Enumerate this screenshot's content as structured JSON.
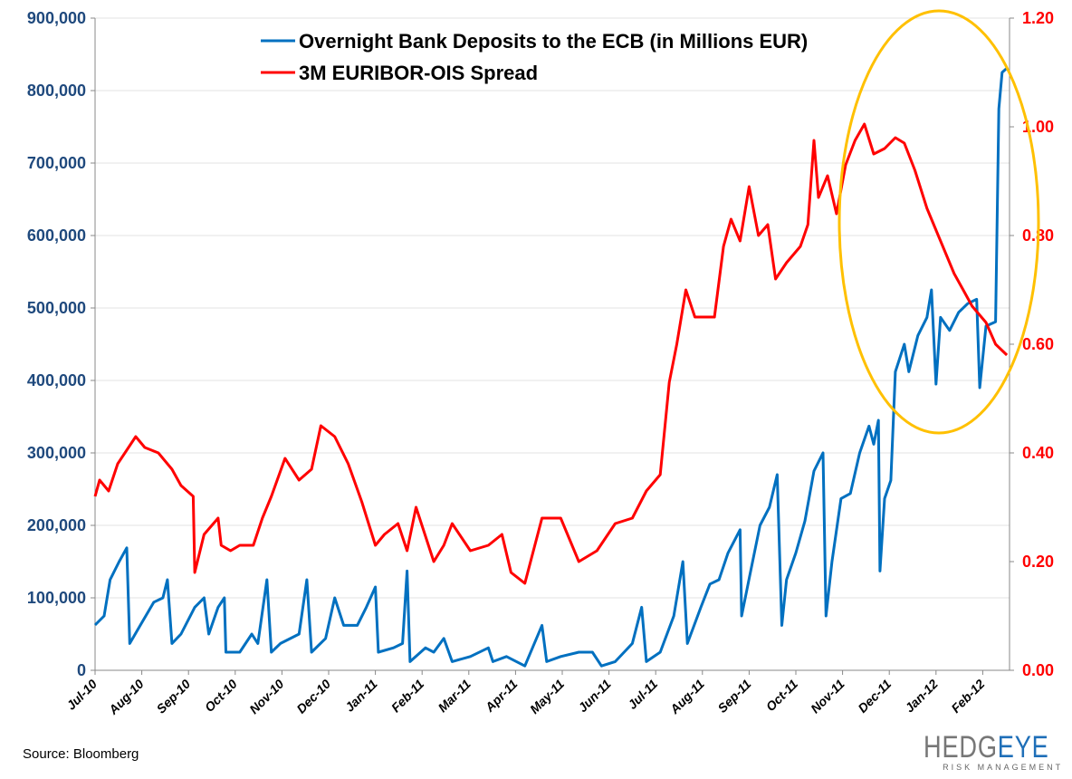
{
  "chart_data": {
    "type": "line",
    "title": "",
    "source": "Source: Bloomberg",
    "logo": {
      "main": "HEDGEYE",
      "sub": "RISK MANAGEMENT"
    },
    "x_tick_labels": [
      "Jul-10",
      "Aug-10",
      "Sep-10",
      "Oct-10",
      "Nov-10",
      "Dec-10",
      "Jan-11",
      "Feb-11",
      "Mar-11",
      "Apr-11",
      "May-11",
      "Jun-11",
      "Jul-11",
      "Aug-11",
      "Sep-11",
      "Oct-11",
      "Nov-11",
      "Dec-11",
      "Jan-12",
      "Feb-12"
    ],
    "y_left": {
      "ticks": [
        0,
        100000,
        200000,
        300000,
        400000,
        500000,
        600000,
        700000,
        800000,
        900000
      ],
      "tick_labels": [
        "0",
        "100,000",
        "200,000",
        "300,000",
        "400,000",
        "500,000",
        "600,000",
        "700,000",
        "800,000",
        "900,000"
      ],
      "range": [
        0,
        900000
      ],
      "color": "#1F497D"
    },
    "y_right": {
      "ticks": [
        0,
        0.2,
        0.4,
        0.6,
        0.8,
        1.0,
        1.2
      ],
      "tick_labels": [
        "0.00",
        "0.20",
        "0.40",
        "0.60",
        "0.80",
        "1.00",
        "1.20"
      ],
      "range": [
        0,
        1.2
      ],
      "color": "#FF0000"
    },
    "grid": "horizontal",
    "legend_position": "top",
    "annotation": {
      "shape": "ellipse",
      "color": "#FFC000",
      "covers": "Nov-11 to Feb-12"
    },
    "series": [
      {
        "name": "Overnight Bank Deposits to the ECB (in Millions EUR)",
        "axis": "left",
        "color": "#0070C0",
        "points": [
          [
            "2010-07-01",
            62500
          ],
          [
            "2010-07-07",
            75000
          ],
          [
            "2010-07-11",
            125000
          ],
          [
            "2010-07-17",
            150000
          ],
          [
            "2010-07-22",
            169000
          ],
          [
            "2010-07-24",
            37000
          ],
          [
            "2010-07-31",
            62000
          ],
          [
            "2010-08-09",
            94000
          ],
          [
            "2010-08-15",
            100000
          ],
          [
            "2010-08-18",
            125000
          ],
          [
            "2010-08-21",
            37000
          ],
          [
            "2010-08-27",
            50000
          ],
          [
            "2010-09-05",
            87000
          ],
          [
            "2010-09-11",
            100000
          ],
          [
            "2010-09-14",
            50000
          ],
          [
            "2010-09-20",
            87000
          ],
          [
            "2010-09-24",
            100000
          ],
          [
            "2010-09-25",
            25000
          ],
          [
            "2010-10-04",
            25000
          ],
          [
            "2010-10-12",
            50000
          ],
          [
            "2010-10-16",
            37000
          ],
          [
            "2010-10-22",
            125000
          ],
          [
            "2010-10-25",
            25000
          ],
          [
            "2010-10-31",
            37000
          ],
          [
            "2010-11-12",
            50000
          ],
          [
            "2010-11-17",
            125000
          ],
          [
            "2010-11-20",
            25000
          ],
          [
            "2010-11-29",
            44000
          ],
          [
            "2010-12-05",
            100000
          ],
          [
            "2010-12-11",
            62000
          ],
          [
            "2010-12-20",
            62000
          ],
          [
            "2010-12-26",
            87000
          ],
          [
            "2011-01-01",
            115000
          ],
          [
            "2011-01-03",
            25000
          ],
          [
            "2011-01-13",
            31000
          ],
          [
            "2011-01-19",
            37000
          ],
          [
            "2011-01-22",
            137000
          ],
          [
            "2011-01-24",
            12000
          ],
          [
            "2011-02-03",
            31000
          ],
          [
            "2011-02-08",
            25000
          ],
          [
            "2011-02-14",
            44000
          ],
          [
            "2011-02-19",
            12000
          ],
          [
            "2011-03-02",
            19000
          ],
          [
            "2011-03-14",
            31000
          ],
          [
            "2011-03-17",
            12000
          ],
          [
            "2011-03-26",
            19000
          ],
          [
            "2011-04-07",
            6000
          ],
          [
            "2011-04-18",
            62000
          ],
          [
            "2011-04-21",
            12000
          ],
          [
            "2011-04-30",
            19000
          ],
          [
            "2011-05-12",
            25000
          ],
          [
            "2011-05-21",
            25000
          ],
          [
            "2011-05-27",
            6000
          ],
          [
            "2011-06-05",
            12000
          ],
          [
            "2011-06-16",
            37000
          ],
          [
            "2011-06-22",
            87000
          ],
          [
            "2011-06-25",
            12000
          ],
          [
            "2011-07-04",
            25000
          ],
          [
            "2011-07-13",
            75000
          ],
          [
            "2011-07-19",
            150000
          ],
          [
            "2011-07-22",
            37000
          ],
          [
            "2011-07-31",
            87000
          ],
          [
            "2011-08-06",
            119000
          ],
          [
            "2011-08-12",
            125000
          ],
          [
            "2011-08-18",
            162000
          ],
          [
            "2011-08-26",
            194000
          ],
          [
            "2011-08-27",
            75000
          ],
          [
            "2011-09-02",
            137000
          ],
          [
            "2011-09-08",
            200000
          ],
          [
            "2011-09-14",
            225000
          ],
          [
            "2011-09-19",
            270000
          ],
          [
            "2011-09-22",
            62000
          ],
          [
            "2011-09-25",
            125000
          ],
          [
            "2011-10-01",
            162000
          ],
          [
            "2011-10-07",
            206000
          ],
          [
            "2011-10-13",
            275000
          ],
          [
            "2011-10-19",
            300000
          ],
          [
            "2011-10-21",
            75000
          ],
          [
            "2011-10-25",
            150000
          ],
          [
            "2011-10-31",
            237000
          ],
          [
            "2011-11-06",
            244000
          ],
          [
            "2011-11-12",
            300000
          ],
          [
            "2011-11-18",
            337000
          ],
          [
            "2011-11-21",
            312000
          ],
          [
            "2011-11-24",
            345000
          ],
          [
            "2011-11-25",
            137000
          ],
          [
            "2011-11-28",
            237000
          ],
          [
            "2011-12-02",
            262000
          ],
          [
            "2011-12-05",
            412000
          ],
          [
            "2011-12-11",
            450000
          ],
          [
            "2011-12-14",
            412000
          ],
          [
            "2011-12-20",
            462000
          ],
          [
            "2011-12-26",
            487000
          ],
          [
            "2011-12-29",
            525000
          ],
          [
            "2012-01-01",
            395000
          ],
          [
            "2012-01-04",
            487000
          ],
          [
            "2012-01-10",
            469000
          ],
          [
            "2012-01-16",
            494000
          ],
          [
            "2012-01-22",
            506000
          ],
          [
            "2012-01-28",
            512000
          ],
          [
            "2012-01-30",
            390000
          ],
          [
            "2012-02-03",
            475000
          ],
          [
            "2012-02-09",
            481000
          ],
          [
            "2012-02-11",
            775000
          ],
          [
            "2012-02-13",
            825000
          ],
          [
            "2012-02-16",
            831000
          ]
        ]
      },
      {
        "name": "3M EURIBOR-OIS Spread",
        "axis": "right",
        "color": "#FF0000",
        "points": [
          [
            "2010-07-01",
            0.32
          ],
          [
            "2010-07-04",
            0.35
          ],
          [
            "2010-07-10",
            0.33
          ],
          [
            "2010-07-16",
            0.38
          ],
          [
            "2010-07-28",
            0.43
          ],
          [
            "2010-08-03",
            0.41
          ],
          [
            "2010-08-12",
            0.4
          ],
          [
            "2010-08-21",
            0.37
          ],
          [
            "2010-08-27",
            0.34
          ],
          [
            "2010-09-04",
            0.32
          ],
          [
            "2010-09-05",
            0.18
          ],
          [
            "2010-09-11",
            0.25
          ],
          [
            "2010-09-20",
            0.28
          ],
          [
            "2010-09-22",
            0.23
          ],
          [
            "2010-09-28",
            0.22
          ],
          [
            "2010-10-04",
            0.23
          ],
          [
            "2010-10-13",
            0.23
          ],
          [
            "2010-10-19",
            0.28
          ],
          [
            "2010-10-25",
            0.32
          ],
          [
            "2010-11-03",
            0.39
          ],
          [
            "2010-11-12",
            0.35
          ],
          [
            "2010-11-20",
            0.37
          ],
          [
            "2010-11-26",
            0.45
          ],
          [
            "2010-12-05",
            0.43
          ],
          [
            "2010-12-14",
            0.38
          ],
          [
            "2010-12-23",
            0.31
          ],
          [
            "2011-01-01",
            0.23
          ],
          [
            "2011-01-07",
            0.25
          ],
          [
            "2011-01-16",
            0.27
          ],
          [
            "2011-01-22",
            0.22
          ],
          [
            "2011-01-28",
            0.3
          ],
          [
            "2011-02-08",
            0.2
          ],
          [
            "2011-02-14",
            0.23
          ],
          [
            "2011-02-19",
            0.27
          ],
          [
            "2011-03-02",
            0.22
          ],
          [
            "2011-03-14",
            0.23
          ],
          [
            "2011-03-23",
            0.25
          ],
          [
            "2011-03-29",
            0.18
          ],
          [
            "2011-04-07",
            0.16
          ],
          [
            "2011-04-18",
            0.28
          ],
          [
            "2011-04-30",
            0.28
          ],
          [
            "2011-05-12",
            0.2
          ],
          [
            "2011-05-24",
            0.22
          ],
          [
            "2011-06-05",
            0.27
          ],
          [
            "2011-06-16",
            0.28
          ],
          [
            "2011-06-25",
            0.33
          ],
          [
            "2011-07-04",
            0.36
          ],
          [
            "2011-07-10",
            0.53
          ],
          [
            "2011-07-15",
            0.6
          ],
          [
            "2011-07-21",
            0.7
          ],
          [
            "2011-07-27",
            0.65
          ],
          [
            "2011-08-02",
            0.65
          ],
          [
            "2011-08-09",
            0.65
          ],
          [
            "2011-08-15",
            0.78
          ],
          [
            "2011-08-20",
            0.83
          ],
          [
            "2011-08-26",
            0.79
          ],
          [
            "2011-09-01",
            0.89
          ],
          [
            "2011-09-07",
            0.8
          ],
          [
            "2011-09-13",
            0.82
          ],
          [
            "2011-09-18",
            0.72
          ],
          [
            "2011-09-25",
            0.75
          ],
          [
            "2011-10-04",
            0.78
          ],
          [
            "2011-10-09",
            0.82
          ],
          [
            "2011-10-13",
            0.975
          ],
          [
            "2011-10-16",
            0.87
          ],
          [
            "2011-10-22",
            0.91
          ],
          [
            "2011-10-28",
            0.84
          ],
          [
            "2011-11-03",
            0.93
          ],
          [
            "2011-11-09",
            0.975
          ],
          [
            "2011-11-15",
            1.005
          ],
          [
            "2011-11-21",
            0.95
          ],
          [
            "2011-11-28",
            0.96
          ],
          [
            "2011-12-05",
            0.98
          ],
          [
            "2011-12-11",
            0.97
          ],
          [
            "2011-12-18",
            0.92
          ],
          [
            "2011-12-26",
            0.85
          ],
          [
            "2012-01-01",
            0.81
          ],
          [
            "2012-01-07",
            0.77
          ],
          [
            "2012-01-13",
            0.73
          ],
          [
            "2012-01-19",
            0.7
          ],
          [
            "2012-01-25",
            0.67
          ],
          [
            "2012-02-03",
            0.64
          ],
          [
            "2012-02-09",
            0.6
          ],
          [
            "2012-02-16",
            0.58
          ]
        ]
      }
    ]
  }
}
